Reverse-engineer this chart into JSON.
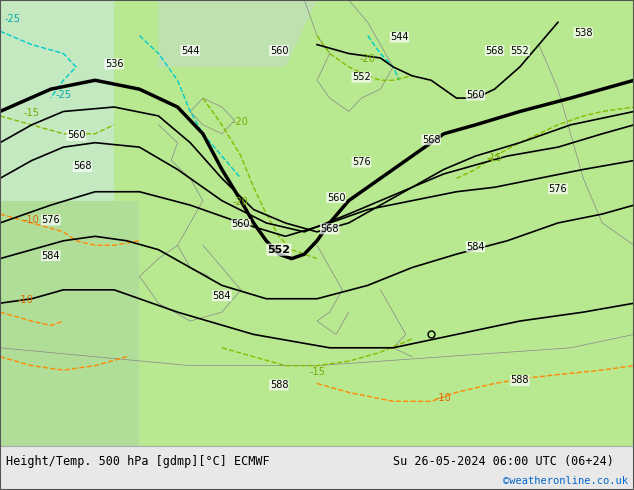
{
  "title_left": "Height/Temp. 500 hPa [gdmp][°C] ECMWF",
  "title_right": "Su 26-05-2024 06:00 UTC (06+24)",
  "watermark": "©weatheronline.co.uk",
  "bg_color": "#c8e6a0",
  "map_bg": "#b8dba0",
  "border_color": "#888888",
  "bottom_bar_color": "#e8e8e8",
  "bottom_bar_height": 0.09,
  "figsize": [
    6.34,
    4.9
  ],
  "dpi": 100
}
